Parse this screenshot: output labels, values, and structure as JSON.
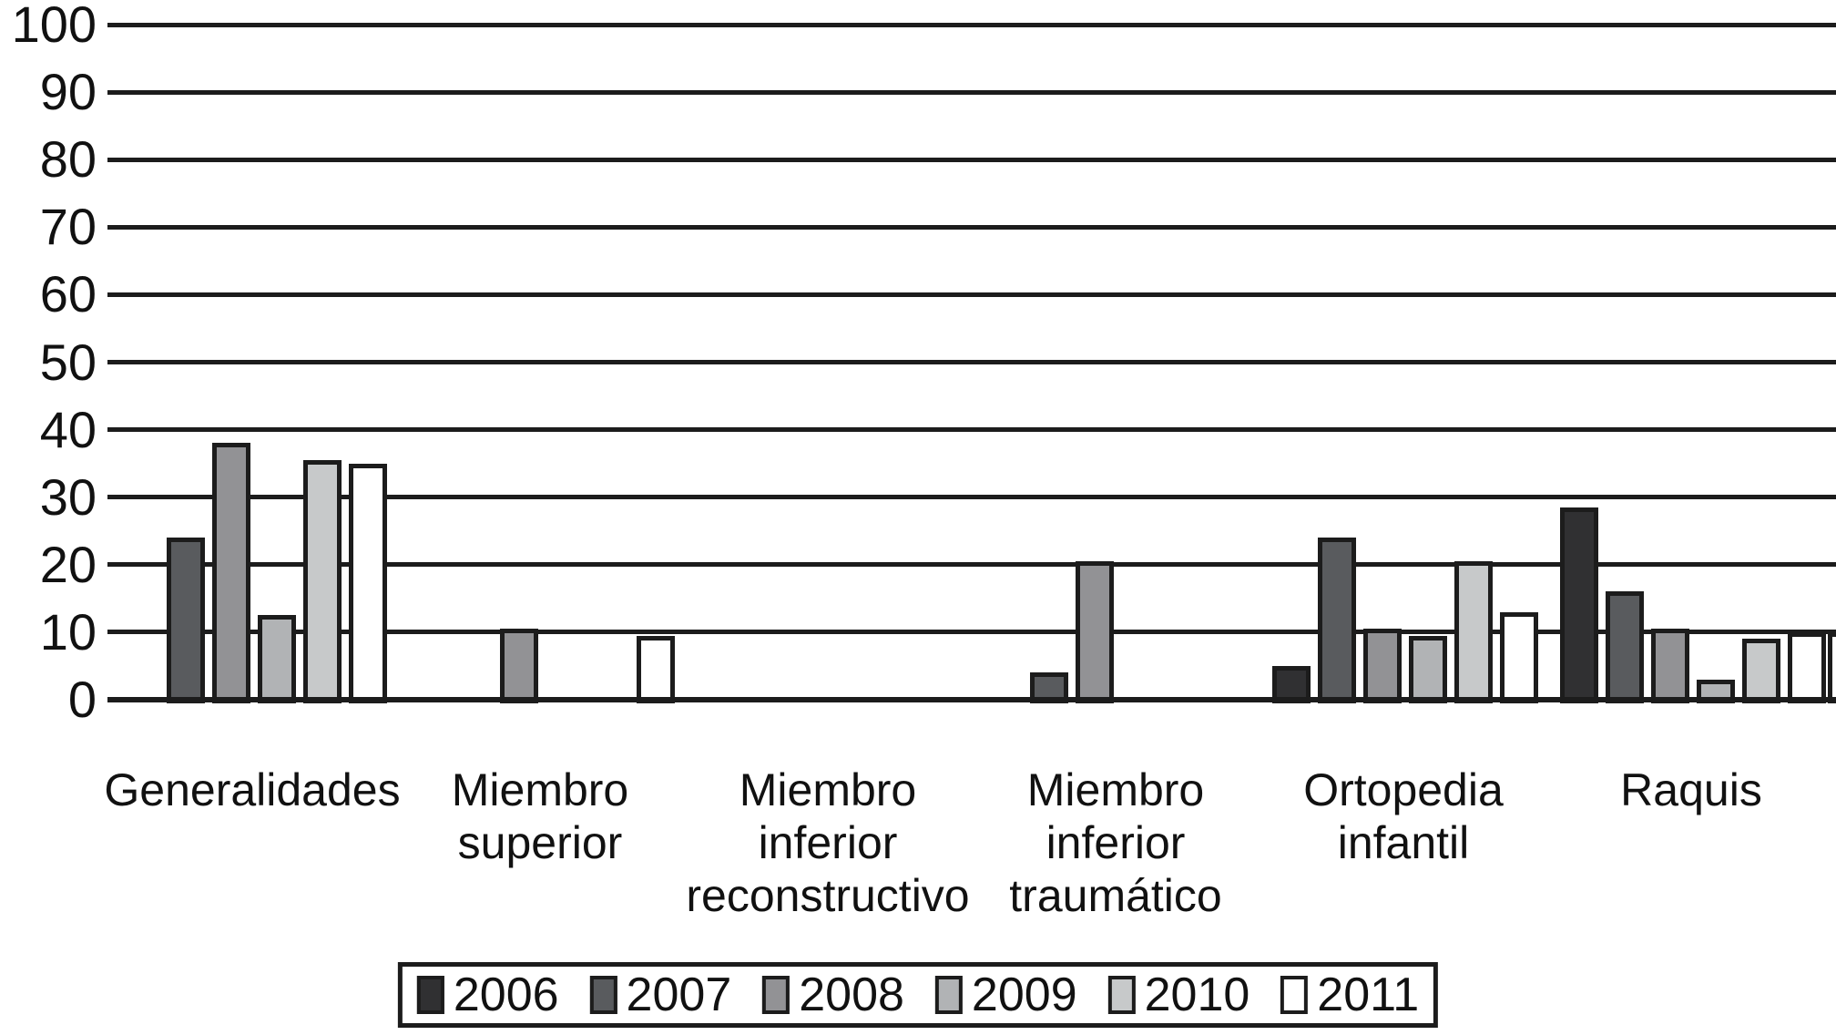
{
  "chart_data": {
    "type": "bar",
    "title": "",
    "xlabel": "",
    "ylabel": "",
    "categories": [
      "Generalidades",
      "Miembro superior",
      "Miembro inferior reconstructivo",
      "Miembro inferior traumático",
      "Ortopedia infantil",
      "Raquis"
    ],
    "category_label_lines": [
      [
        "Generalidades"
      ],
      [
        "Miembro",
        "superior"
      ],
      [
        "Miembro",
        "inferior",
        "reconstructivo"
      ],
      [
        "Miembro",
        "inferior",
        "traumático"
      ],
      [
        "Ortopedia",
        "infantil"
      ],
      [
        "Raquis"
      ]
    ],
    "series": [
      {
        "name": "2006",
        "color": "#303032",
        "values": [
          0,
          0,
          0,
          0,
          5,
          28.5
        ]
      },
      {
        "name": "2007",
        "color": "#595b5e",
        "values": [
          24,
          0,
          0,
          4,
          24,
          16
        ]
      },
      {
        "name": "2008",
        "color": "#929295",
        "values": [
          38,
          10.5,
          0,
          20.5,
          10.5,
          10.5
        ]
      },
      {
        "name": "2009",
        "color": "#b1b3b5",
        "values": [
          12.5,
          0,
          0,
          0,
          9.5,
          3
        ]
      },
      {
        "name": "2010",
        "color": "#c7c9ca",
        "values": [
          35.5,
          0,
          0,
          0,
          20.5,
          9
        ]
      },
      {
        "name": "2011",
        "color": "#ffffff",
        "values": [
          35,
          9.5,
          0,
          0,
          13,
          10
        ]
      }
    ],
    "ylim": [
      0,
      100
    ],
    "yticks": [
      0,
      10,
      20,
      30,
      40,
      50,
      60,
      70,
      80,
      90,
      100
    ],
    "grid": "horizontal",
    "gridline_color": "#1c1c1c",
    "bar_outline_color": "#1c1c1c",
    "legend_position": "bottom",
    "legend_entries": [
      "2006",
      "2007",
      "2008",
      "2009",
      "2010",
      "2011"
    ],
    "right_edge_clipped_bar": {
      "color": "#ffffff",
      "value": 10,
      "note": "white bar partially cut off at right image edge"
    }
  }
}
